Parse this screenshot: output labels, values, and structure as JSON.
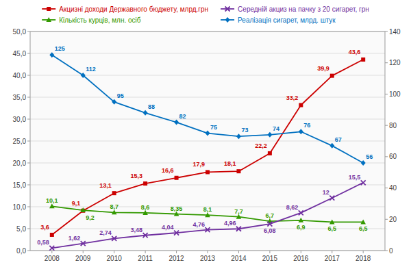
{
  "chart_data": {
    "type": "line",
    "x": [
      2008,
      2009,
      2010,
      2011,
      2012,
      2013,
      2014,
      2015,
      2016,
      2017,
      2018
    ],
    "xlim": [
      2007.3,
      2018.7
    ],
    "xticks": [
      2008,
      2009,
      2010,
      2011,
      2012,
      2013,
      2014,
      2015,
      2016,
      2017,
      2018
    ],
    "ylim": [
      0,
      50
    ],
    "yticks": [
      {
        "value": 0,
        "label": "0,0"
      },
      {
        "value": 5,
        "label": "5,0"
      },
      {
        "value": 10,
        "label": "10,0"
      },
      {
        "value": 15,
        "label": "15,0"
      },
      {
        "value": 20,
        "label": "20,0"
      },
      {
        "value": 25,
        "label": "25,0"
      },
      {
        "value": 30,
        "label": "30,0"
      },
      {
        "value": 35,
        "label": "35,0"
      },
      {
        "value": 40,
        "label": "40,0"
      },
      {
        "value": 45,
        "label": "45,0"
      },
      {
        "value": 50,
        "label": "50,0"
      }
    ],
    "y2lim": [
      0,
      140
    ],
    "y2ticks": [
      0,
      20,
      40,
      60,
      80,
      100,
      120,
      140
    ],
    "grid": true,
    "legend": "top",
    "data_labels": true,
    "series": [
      {
        "name": "Акцизні доходи Державного бюджету, млрд.грн",
        "color": "#cc0000",
        "marker": "square",
        "values": [
          3.6,
          9.1,
          13.1,
          15.3,
          16.6,
          17.9,
          18.1,
          22.2,
          33.2,
          39.9,
          43.6
        ],
        "value_labels": [
          "3,6",
          "9,1",
          "13,1",
          "15,3",
          "16,6",
          "17,9",
          "18,1",
          "22,2",
          "33,2",
          "39,9",
          "43,6"
        ]
      },
      {
        "name": "Кількість курців, млн. осіб",
        "color": "#339900",
        "marker": "triangle",
        "values": [
          10.1,
          9.2,
          8.7,
          8.6,
          8.35,
          8.1,
          7.7,
          6.7,
          6.9,
          6.5,
          6.5
        ],
        "value_labels": [
          "10,1",
          "9,2",
          "8,7",
          "8,6",
          "8,35",
          "8,1",
          "7,7",
          "6,7",
          "6,9",
          "6,5",
          "6,5"
        ]
      },
      {
        "name": "Середній акциз на пачку з 20 сигарет, грн",
        "color": "#7030a0",
        "marker": "x",
        "values": [
          0.58,
          1.62,
          2.74,
          3.48,
          4.04,
          4.76,
          4.96,
          6.08,
          8.62,
          12.0,
          15.5
        ],
        "value_labels": [
          "0,58",
          "1,62",
          "2,74",
          "3,48",
          "4,04",
          "4,76",
          "4,96",
          "6,08",
          "8,62",
          "12",
          "15,5"
        ]
      },
      {
        "name": "Реалізація сигарет, млрд. штук",
        "color": "#0070c0",
        "marker": "diamond",
        "axis": "y2",
        "values": [
          125,
          112,
          95,
          88,
          82,
          75,
          73,
          74,
          76,
          67,
          56
        ]
      }
    ]
  }
}
